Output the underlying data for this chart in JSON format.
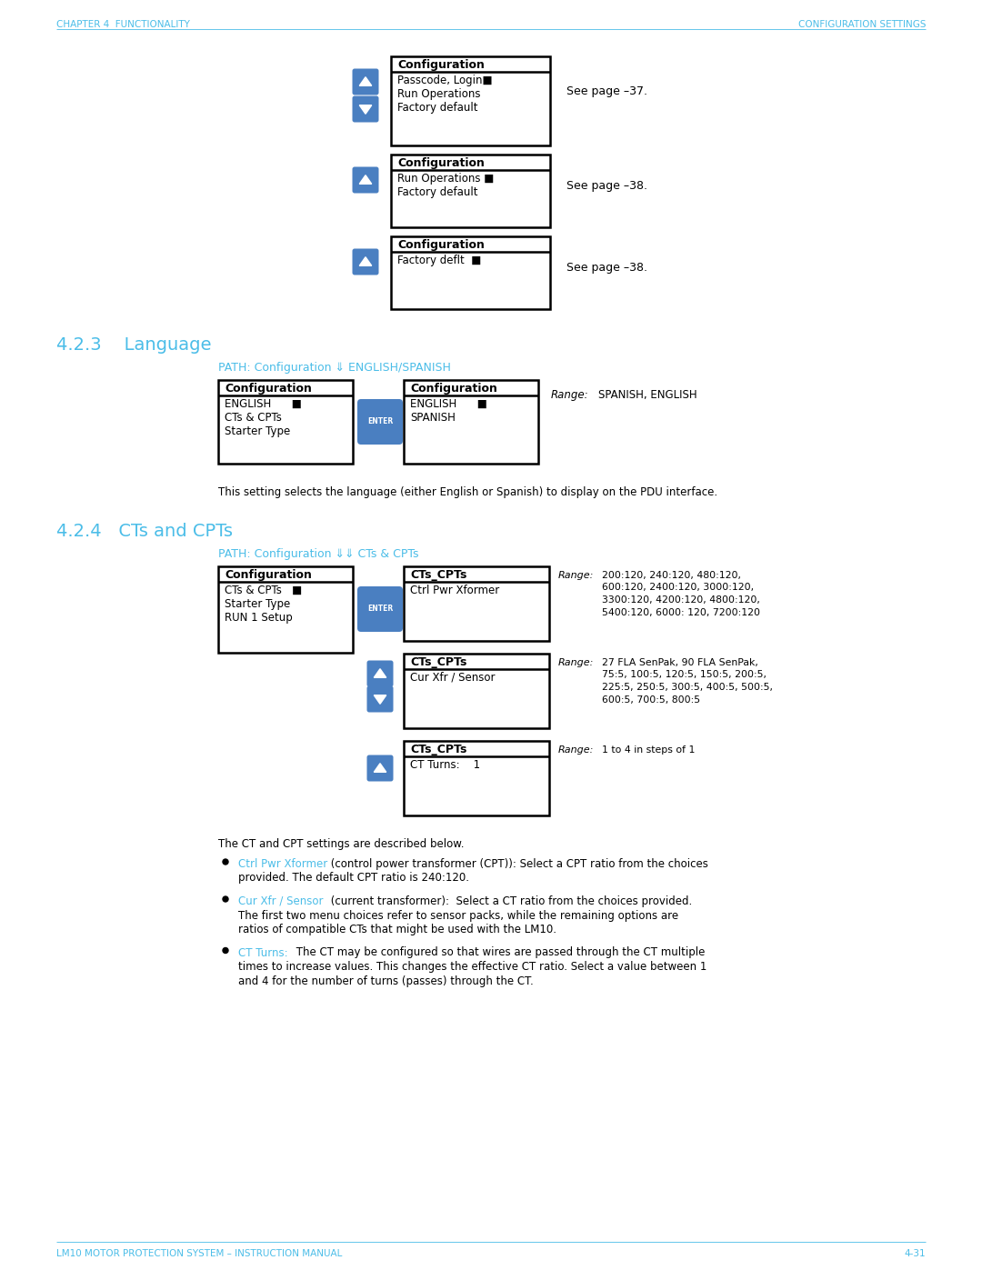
{
  "header_left": "CHAPTER 4  FUNCTIONALITY",
  "header_right": "CONFIGURATION SETTINGS",
  "footer_left": "LM10 MOTOR PROTECTION SYSTEM – INSTRUCTION MANUAL",
  "footer_right": "4-31",
  "header_color": "#4BBDE8",
  "section_423_title": "4.2.3    Language",
  "section_424_title": "4.2.4   CTs and CPTs",
  "path_423": "PATH: Configuration ⇓ ENGLISH/SPANISH",
  "path_424": "PATH: Configuration ⇓⇓ CTs & CPTs",
  "section_title_color": "#4BBDE8",
  "path_color": "#4BBDE8",
  "box1_title": "Configuration",
  "box1_lines": [
    "Passcode, Login■",
    "Run Operations",
    "Factory default"
  ],
  "box1_note": "See page –37.",
  "box2_title": "Configuration",
  "box2_lines": [
    "Run Operations ■",
    "Factory default"
  ],
  "box2_note": "See page –38.",
  "box3_title": "Configuration",
  "box3_lines": [
    "Factory deflt  ■"
  ],
  "box3_note": "See page –38.",
  "lang_left_title": "Configuration",
  "lang_left_lines": [
    "ENGLISH      ■",
    "CTs & CPTs",
    "Starter Type"
  ],
  "lang_right_title": "Configuration",
  "lang_right_lines": [
    "ENGLISH      ■",
    "SPANISH"
  ],
  "lang_range_label": "Range:",
  "lang_range_value": "SPANISH, ENGLISH",
  "lang_desc": "This setting selects the language (either English or Spanish) to display on the PDU interface.",
  "ct_left_title": "Configuration",
  "ct_left_lines": [
    "CTs & CPTs   ■",
    "Starter Type",
    "RUN 1 Setup"
  ],
  "ct_box1_title": "CTs_CPTs",
  "ct_box1_line": "Ctrl Pwr Xformer",
  "ct_box1_range_label": "Range:",
  "ct_box1_range_lines": [
    "200:120, 240:120, 480:120,",
    "600:120, 2400:120, 3000:120,",
    "3300:120, 4200:120, 4800:120,",
    "5400:120, 6000: 120, 7200:120"
  ],
  "ct_box2_title": "CTs_CPTs",
  "ct_box2_line": "Cur Xfr / Sensor",
  "ct_box2_range_label": "Range:",
  "ct_box2_range_lines": [
    "27 FLA SenPak, 90 FLA SenPak,",
    "75:5, 100:5, 120:5, 150:5, 200:5,",
    "225:5, 250:5, 300:5, 400:5, 500:5,",
    "600:5, 700:5, 800:5"
  ],
  "ct_box3_title": "CTs_CPTs",
  "ct_box3_line": "CT Turns:    1",
  "ct_box3_range_label": "Range:",
  "ct_box3_range": "1 to 4 in steps of 1",
  "ct_desc1": "The CT and CPT settings are described below.",
  "ct_bullet1_bold": "Ctrl Pwr Xformer",
  "ct_bullet1_rest1": " (control power transformer (CPT)): Select a CPT ratio from the choices",
  "ct_bullet1_rest2": "provided. The default CPT ratio is 240:120.",
  "ct_bullet2_bold": "Cur Xfr / Sensor",
  "ct_bullet2_rest1": " (current transformer):  Select a CT ratio from the choices provided.",
  "ct_bullet2_rest2": "The first two menu choices refer to sensor packs, while the remaining options are",
  "ct_bullet2_rest3": "ratios of compatible CTs that might be used with the LM10.",
  "ct_bullet3_bold": "CT Turns:",
  "ct_bullet3_rest1": " The CT may be configured so that wires are passed through the CT multiple",
  "ct_bullet3_rest2": "times to increase values. This changes the effective CT ratio. Select a value between 1",
  "ct_bullet3_rest3": "and 4 for the number of turns (passes) through the CT.",
  "blue_btn_color": "#4A7FC1",
  "enter_btn_color": "#4A7FC1",
  "bg_color": "#FFFFFF"
}
